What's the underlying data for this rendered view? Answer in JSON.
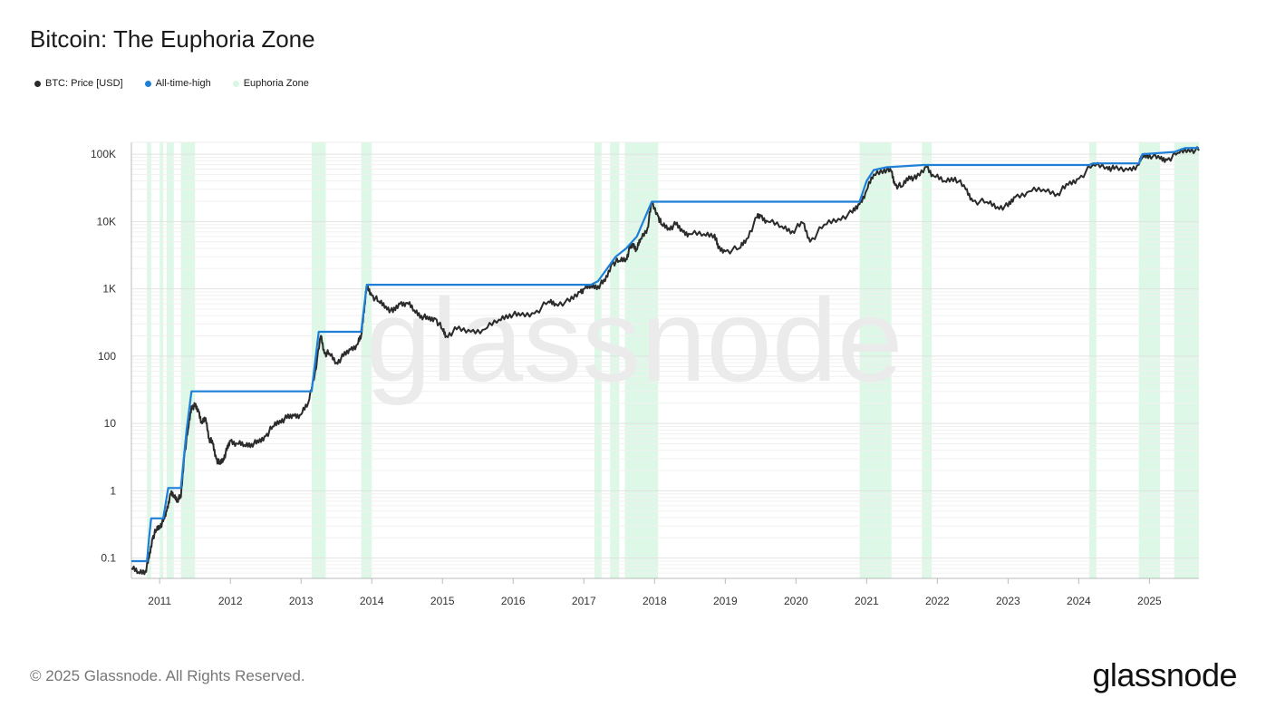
{
  "title": "Bitcoin: The Euphoria Zone",
  "legend": [
    {
      "label": "BTC: Price [USD]",
      "color": "#2b2b2b"
    },
    {
      "label": "All-time-high",
      "color": "#1e7fd8"
    },
    {
      "label": "Euphoria Zone",
      "color": "#d8f7e3"
    }
  ],
  "watermark": "glassnode",
  "footer": {
    "copyright": "© 2025 Glassnode. All Rights Reserved.",
    "logo": "glassnode"
  },
  "chart_data": {
    "type": "line",
    "title": "Bitcoin: The Euphoria Zone",
    "yscale": "log",
    "ylim": [
      0.05,
      150000
    ],
    "xlim": [
      2010.6,
      2025.7
    ],
    "y_ticks": [
      {
        "value": 0.1,
        "label": "0.1"
      },
      {
        "value": 1,
        "label": "1"
      },
      {
        "value": 10,
        "label": "10"
      },
      {
        "value": 100,
        "label": "100"
      },
      {
        "value": 1000,
        "label": "1K"
      },
      {
        "value": 10000,
        "label": "10K"
      },
      {
        "value": 100000,
        "label": "100K"
      }
    ],
    "x_ticks": [
      "2011",
      "2012",
      "2013",
      "2014",
      "2015",
      "2016",
      "2017",
      "2018",
      "2019",
      "2020",
      "2021",
      "2022",
      "2023",
      "2024",
      "2025"
    ],
    "grid": true,
    "legend_position": "top-left",
    "series": [
      {
        "name": "BTC: Price [USD]",
        "color": "#2b2b2b",
        "points": [
          [
            2010.6,
            0.07
          ],
          [
            2010.7,
            0.062
          ],
          [
            2010.8,
            0.065
          ],
          [
            2010.85,
            0.1
          ],
          [
            2010.9,
            0.2
          ],
          [
            2010.95,
            0.26
          ],
          [
            2011.0,
            0.3
          ],
          [
            2011.05,
            0.35
          ],
          [
            2011.1,
            0.5
          ],
          [
            2011.15,
            0.9
          ],
          [
            2011.2,
            0.85
          ],
          [
            2011.25,
            0.75
          ],
          [
            2011.3,
            0.8
          ],
          [
            2011.35,
            3.5
          ],
          [
            2011.4,
            8
          ],
          [
            2011.45,
            18
          ],
          [
            2011.5,
            18
          ],
          [
            2011.55,
            15
          ],
          [
            2011.6,
            10
          ],
          [
            2011.65,
            12
          ],
          [
            2011.7,
            6
          ],
          [
            2011.75,
            5
          ],
          [
            2011.8,
            3
          ],
          [
            2011.85,
            2.5
          ],
          [
            2011.9,
            3
          ],
          [
            2011.95,
            4
          ],
          [
            2012.0,
            5.5
          ],
          [
            2012.1,
            5
          ],
          [
            2012.2,
            4.8
          ],
          [
            2012.3,
            5
          ],
          [
            2012.4,
            5.2
          ],
          [
            2012.5,
            6.5
          ],
          [
            2012.6,
            9
          ],
          [
            2012.7,
            11
          ],
          [
            2012.8,
            12
          ],
          [
            2012.9,
            13
          ],
          [
            2013.0,
            13.5
          ],
          [
            2013.1,
            20
          ],
          [
            2013.2,
            60
          ],
          [
            2013.28,
            200
          ],
          [
            2013.33,
            110
          ],
          [
            2013.4,
            110
          ],
          [
            2013.5,
            80
          ],
          [
            2013.6,
            100
          ],
          [
            2013.7,
            125
          ],
          [
            2013.8,
            150
          ],
          [
            2013.85,
            200
          ],
          [
            2013.9,
            600
          ],
          [
            2013.93,
            1100
          ],
          [
            2014.0,
            800
          ],
          [
            2014.1,
            650
          ],
          [
            2014.2,
            550
          ],
          [
            2014.3,
            450
          ],
          [
            2014.4,
            600
          ],
          [
            2014.5,
            620
          ],
          [
            2014.6,
            480
          ],
          [
            2014.7,
            400
          ],
          [
            2014.8,
            350
          ],
          [
            2014.9,
            360
          ],
          [
            2015.0,
            250
          ],
          [
            2015.05,
            200
          ],
          [
            2015.2,
            250
          ],
          [
            2015.4,
            230
          ],
          [
            2015.6,
            250
          ],
          [
            2015.8,
            350
          ],
          [
            2015.95,
            420
          ],
          [
            2016.1,
            400
          ],
          [
            2016.3,
            430
          ],
          [
            2016.5,
            650
          ],
          [
            2016.6,
            600
          ],
          [
            2016.8,
            650
          ],
          [
            2016.95,
            900
          ],
          [
            2017.0,
            1000
          ],
          [
            2017.1,
            1100
          ],
          [
            2017.2,
            1100
          ],
          [
            2017.3,
            1300
          ],
          [
            2017.4,
            2400
          ],
          [
            2017.5,
            2600
          ],
          [
            2017.6,
            2800
          ],
          [
            2017.65,
            4000
          ],
          [
            2017.7,
            4500
          ],
          [
            2017.75,
            3800
          ],
          [
            2017.8,
            5500
          ],
          [
            2017.9,
            8000
          ],
          [
            2017.96,
            19000
          ],
          [
            2018.05,
            12000
          ],
          [
            2018.1,
            9000
          ],
          [
            2018.2,
            8000
          ],
          [
            2018.3,
            9000
          ],
          [
            2018.4,
            7000
          ],
          [
            2018.5,
            6500
          ],
          [
            2018.7,
            6500
          ],
          [
            2018.85,
            6400
          ],
          [
            2018.9,
            4000
          ],
          [
            2019.0,
            3600
          ],
          [
            2019.2,
            4000
          ],
          [
            2019.3,
            5500
          ],
          [
            2019.45,
            11500
          ],
          [
            2019.5,
            12000
          ],
          [
            2019.6,
            10000
          ],
          [
            2019.8,
            8500
          ],
          [
            2019.95,
            7200
          ],
          [
            2020.1,
            9500
          ],
          [
            2020.2,
            5000
          ],
          [
            2020.4,
            9000
          ],
          [
            2020.6,
            11000
          ],
          [
            2020.8,
            13500
          ],
          [
            2020.9,
            18000
          ],
          [
            2021.0,
            29000
          ],
          [
            2021.1,
            50000
          ],
          [
            2021.25,
            60000
          ],
          [
            2021.35,
            55000
          ],
          [
            2021.4,
            35000
          ],
          [
            2021.5,
            33000
          ],
          [
            2021.6,
            47000
          ],
          [
            2021.7,
            43000
          ],
          [
            2021.85,
            65000
          ],
          [
            2021.95,
            47000
          ],
          [
            2022.1,
            40000
          ],
          [
            2022.25,
            45000
          ],
          [
            2022.4,
            30000
          ],
          [
            2022.5,
            20000
          ],
          [
            2022.7,
            19500
          ],
          [
            2022.85,
            16500
          ],
          [
            2023.0,
            16800
          ],
          [
            2023.1,
            23000
          ],
          [
            2023.3,
            28000
          ],
          [
            2023.5,
            30000
          ],
          [
            2023.7,
            26000
          ],
          [
            2023.85,
            35000
          ],
          [
            2024.0,
            43000
          ],
          [
            2024.2,
            70000
          ],
          [
            2024.4,
            65000
          ],
          [
            2024.5,
            60000
          ],
          [
            2024.7,
            58000
          ],
          [
            2024.85,
            70000
          ],
          [
            2024.9,
            95000
          ],
          [
            2025.0,
            98000
          ],
          [
            2025.15,
            85000
          ],
          [
            2025.25,
            82000
          ],
          [
            2025.4,
            105000
          ],
          [
            2025.55,
            118000
          ],
          [
            2025.7,
            113000
          ]
        ]
      },
      {
        "name": "All-time-high",
        "color": "#1e7fd8",
        "points": [
          [
            2010.6,
            0.09
          ],
          [
            2010.82,
            0.09
          ],
          [
            2010.85,
            0.2
          ],
          [
            2010.88,
            0.39
          ],
          [
            2011.05,
            0.39
          ],
          [
            2011.12,
            1.1
          ],
          [
            2011.3,
            1.1
          ],
          [
            2011.38,
            8
          ],
          [
            2011.45,
            30
          ],
          [
            2013.15,
            30
          ],
          [
            2013.25,
            230
          ],
          [
            2013.85,
            230
          ],
          [
            2013.93,
            1150
          ],
          [
            2017.1,
            1150
          ],
          [
            2017.2,
            1300
          ],
          [
            2017.45,
            3000
          ],
          [
            2017.6,
            4000
          ],
          [
            2017.75,
            6000
          ],
          [
            2017.96,
            19700
          ],
          [
            2020.9,
            19700
          ],
          [
            2021.0,
            40000
          ],
          [
            2021.1,
            58000
          ],
          [
            2021.28,
            64000
          ],
          [
            2021.8,
            69000
          ],
          [
            2024.15,
            69000
          ],
          [
            2024.2,
            73000
          ],
          [
            2024.85,
            73000
          ],
          [
            2024.9,
            100000
          ],
          [
            2025.35,
            108000
          ],
          [
            2025.5,
            123000
          ],
          [
            2025.7,
            124000
          ]
        ]
      }
    ],
    "euphoria_zones": [
      [
        2010.82,
        2010.88
      ],
      [
        2011.0,
        2011.05
      ],
      [
        2011.1,
        2011.2
      ],
      [
        2011.3,
        2011.5
      ],
      [
        2013.15,
        2013.35
      ],
      [
        2013.85,
        2014.0
      ],
      [
        2017.15,
        2017.25
      ],
      [
        2017.37,
        2017.5
      ],
      [
        2017.58,
        2018.05
      ],
      [
        2020.9,
        2021.35
      ],
      [
        2021.78,
        2021.92
      ],
      [
        2024.15,
        2024.25
      ],
      [
        2024.85,
        2025.15
      ],
      [
        2025.35,
        2025.7
      ]
    ]
  }
}
